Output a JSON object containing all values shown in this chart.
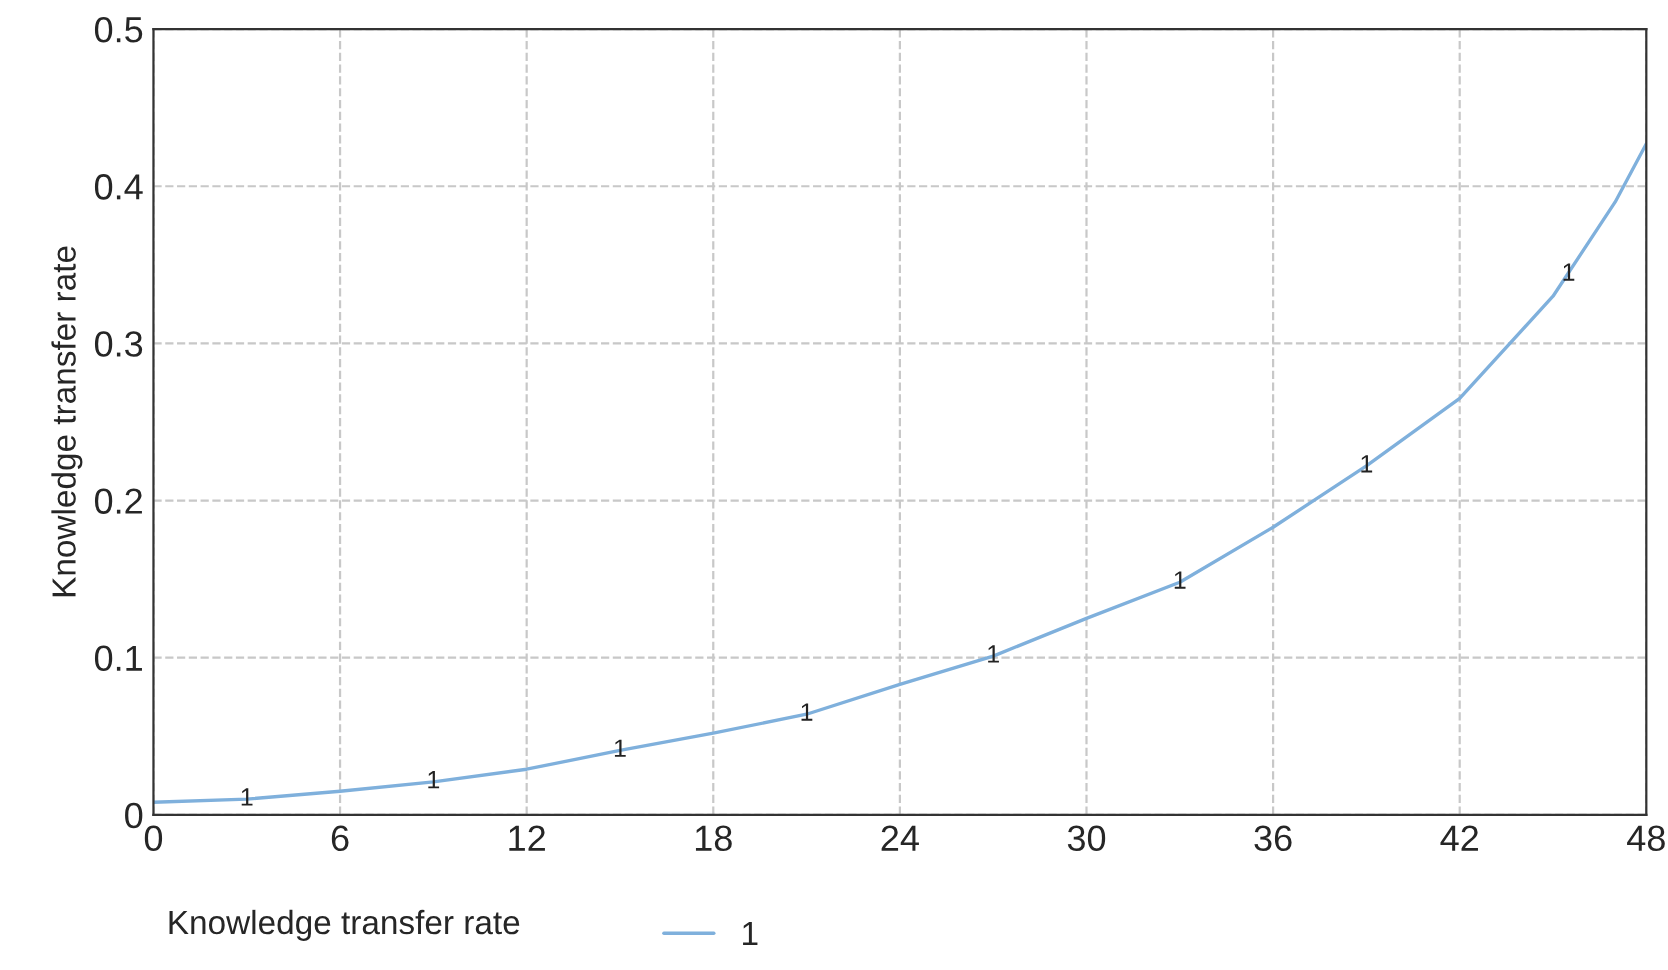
{
  "chart_data": {
    "type": "line",
    "xlabel": "Knowledge transfer rate",
    "ylabel": "Knowledge transfer rate",
    "series": [
      {
        "name": "1",
        "color": "#7fb0dc",
        "x": [
          0,
          3,
          6,
          9,
          12,
          15,
          18,
          21,
          24,
          27,
          30,
          33,
          36,
          39,
          42,
          45,
          47,
          48
        ],
        "values": [
          0.008,
          0.01,
          0.015,
          0.021,
          0.029,
          0.041,
          0.052,
          0.064,
          0.083,
          0.101,
          0.125,
          0.148,
          0.183,
          0.222,
          0.265,
          0.33,
          0.39,
          0.427
        ]
      }
    ],
    "annotations": [
      {
        "text": "1",
        "x": 3,
        "y": 0.01
      },
      {
        "text": "1",
        "x": 9,
        "y": 0.021
      },
      {
        "text": "1",
        "x": 15,
        "y": 0.041
      },
      {
        "text": "1",
        "x": 21,
        "y": 0.064
      },
      {
        "text": "1",
        "x": 27,
        "y": 0.101
      },
      {
        "text": "1",
        "x": 33,
        "y": 0.148
      },
      {
        "text": "1",
        "x": 39,
        "y": 0.222
      },
      {
        "text": "1",
        "x": 45.5,
        "y": 0.344
      }
    ],
    "xlim": [
      0,
      48
    ],
    "xticks": [
      0,
      6,
      12,
      18,
      24,
      30,
      36,
      42,
      48
    ],
    "ylim": [
      0,
      0.5
    ],
    "yticks": [
      0,
      0.1,
      0.2,
      0.3,
      0.4,
      0.5
    ],
    "grid": true,
    "legend": "bottom left",
    "line_style": "solid"
  }
}
